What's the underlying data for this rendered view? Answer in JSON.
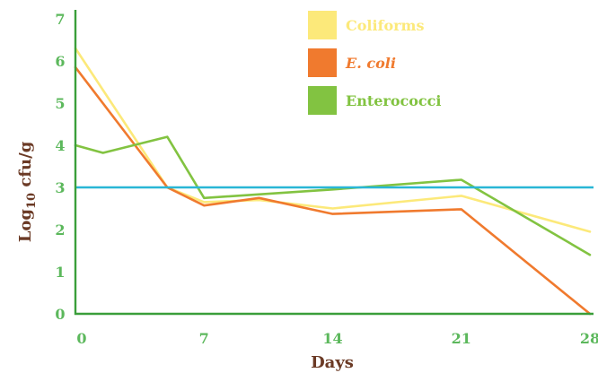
{
  "chart_data": {
    "type": "line",
    "xlabel": "Days",
    "ylabel": "Log10 cfu/g",
    "ylabel_main": "Log",
    "ylabel_sub": "10",
    "ylabel_rest": " cfu/g",
    "xlim": [
      0,
      28
    ],
    "ylim": [
      0,
      7
    ],
    "xticks": [
      0,
      7,
      14,
      21,
      28
    ],
    "xtick_labels": [
      "0",
      "7",
      "14",
      "21",
      "28"
    ],
    "yticks": [
      0,
      1,
      2,
      3,
      4,
      5,
      6,
      7
    ],
    "ytick_labels": [
      "0",
      "1",
      "2",
      "3",
      "4",
      "5",
      "6",
      "7"
    ],
    "grid": false,
    "legend_position": "top-right",
    "reference_line": {
      "y": 3,
      "color": "#29b6d6"
    },
    "series": [
      {
        "name": "Coliforms",
        "color": "#fce97a",
        "x": [
          0,
          5,
          7,
          10,
          14,
          21,
          28
        ],
        "y": [
          6.3,
          3.0,
          2.65,
          2.7,
          2.5,
          2.8,
          1.95
        ]
      },
      {
        "name": "E. coli",
        "italic": true,
        "color": "#f07a2e",
        "x": [
          0,
          5,
          7,
          10,
          14,
          21,
          28
        ],
        "y": [
          5.85,
          3.0,
          2.57,
          2.75,
          2.37,
          2.48,
          0.0
        ]
      },
      {
        "name": "Enterococci",
        "color": "#82c341",
        "x": [
          0,
          1.5,
          5,
          7,
          14,
          21,
          28
        ],
        "y": [
          4.0,
          3.82,
          4.2,
          2.75,
          2.95,
          3.18,
          1.4
        ]
      }
    ],
    "axis_color": "#3a9e3a",
    "tick_color": "#5cb85c",
    "title_color": "#6b3a25"
  }
}
